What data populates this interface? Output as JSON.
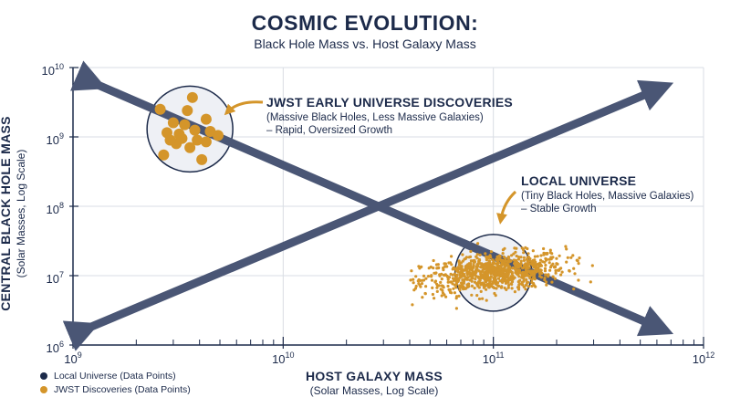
{
  "chart_data": {
    "type": "scatter",
    "title": "COSMIC EVOLUTION:",
    "subtitle": "Black Hole Mass vs. Host Galaxy Mass",
    "xlabel": "HOST GALAXY MASS",
    "xlabel_sub": "(Solar Masses, Log Scale)",
    "ylabel": "CENTRAL BLACK HOLE MASS",
    "ylabel_sub": "(Solar Masses, Log Scale)",
    "x_scale": "log",
    "y_scale": "log",
    "xlim": [
      1000000000.0,
      1000000000000.0
    ],
    "ylim": [
      1000000.0,
      10000000000.0
    ],
    "x_ticks": [
      {
        "base": "10",
        "exp": "9",
        "value": 1000000000.0
      },
      {
        "base": "10",
        "exp": "10",
        "value": 10000000000.0
      },
      {
        "base": "10",
        "exp": "11",
        "value": 100000000000.0
      },
      {
        "base": "10",
        "exp": "12",
        "value": 1000000000000.0
      }
    ],
    "y_ticks": [
      {
        "base": "10",
        "exp": "6",
        "value": 1000000.0
      },
      {
        "base": "10",
        "exp": "7",
        "value": 10000000.0
      },
      {
        "base": "10",
        "exp": "8",
        "value": 100000000.0
      },
      {
        "base": "10",
        "exp": "9",
        "value": 1000000000.0
      },
      {
        "base": "10",
        "exp": "10",
        "value": 10000000000.0
      }
    ],
    "grid": true,
    "legend_position": "bottom-left",
    "series": [
      {
        "name": "JWST Discoveries (Data Points)",
        "color": "#d4952a",
        "points": [
          {
            "x": 2600000000.0,
            "y": 2500000000.0
          },
          {
            "x": 3700000000.0,
            "y": 3700000000.0
          },
          {
            "x": 3500000000.0,
            "y": 2400000000.0
          },
          {
            "x": 4300000000.0,
            "y": 1800000000.0
          },
          {
            "x": 3400000000.0,
            "y": 1500000000.0
          },
          {
            "x": 3000000000.0,
            "y": 1600000000.0
          },
          {
            "x": 2800000000.0,
            "y": 1150000000.0
          },
          {
            "x": 3200000000.0,
            "y": 1100000000.0
          },
          {
            "x": 3800000000.0,
            "y": 1250000000.0
          },
          {
            "x": 4500000000.0,
            "y": 1200000000.0
          },
          {
            "x": 3900000000.0,
            "y": 900000000.0
          },
          {
            "x": 3100000000.0,
            "y": 800000000.0
          },
          {
            "x": 3300000000.0,
            "y": 950000000.0
          },
          {
            "x": 4300000000.0,
            "y": 850000000.0
          },
          {
            "x": 3600000000.0,
            "y": 700000000.0
          },
          {
            "x": 4100000000.0,
            "y": 470000000.0
          },
          {
            "x": 2700000000.0,
            "y": 550000000.0
          },
          {
            "x": 2900000000.0,
            "y": 900000000.0
          },
          {
            "x": 4900000000.0,
            "y": 1050000000.0
          }
        ]
      },
      {
        "name": "Local Universe (Data Points)",
        "color": "#1c2a4a",
        "marker_color": "#d4952a",
        "cluster": {
          "center_x": 100000000000.0,
          "center_y": 11000000.0,
          "spread_x_dex": 0.17,
          "spread_y_dex": 0.17,
          "count": 900,
          "extent_x": [
            40000000000.0,
            320000000000.0
          ],
          "extent_y": [
            3000000.0,
            50000000.0
          ]
        }
      }
    ],
    "trend_lines": [
      {
        "from": {
          "x": 1150000000.0,
          "y": 1700000.0
        },
        "to": {
          "x": 620000000000.0,
          "y": 5000000000.0
        },
        "color": "#4a5675"
      },
      {
        "from": {
          "x": 1250000000.0,
          "y": 6000000000.0
        },
        "to": {
          "x": 620000000000.0,
          "y": 1750000.0
        },
        "color": "#4a5675"
      }
    ],
    "highlight_circles": [
      {
        "center_x": 3600000000.0,
        "center_y": 1300000000.0,
        "target": "JWST Discoveries"
      },
      {
        "center_x": 100000000000.0,
        "center_y": 11000000.0,
        "target": "Local Universe"
      }
    ],
    "annotations": [
      {
        "head": "JWST EARLY UNIVERSE DISCOVERIES",
        "lines": [
          "(Massive Black Holes, Less Massive Galaxies)",
          "– Rapid, Oversized Growth"
        ]
      },
      {
        "head": "LOCAL UNIVERSE",
        "lines": [
          "(Tiny Black Holes, Massive Galaxies)",
          "– Stable Growth"
        ]
      }
    ]
  },
  "legend": [
    {
      "label": "Local Universe (Data Points)",
      "color": "#1c2a4a"
    },
    {
      "label": "JWST Discoveries (Data Points)",
      "color": "#d4952a"
    }
  ]
}
